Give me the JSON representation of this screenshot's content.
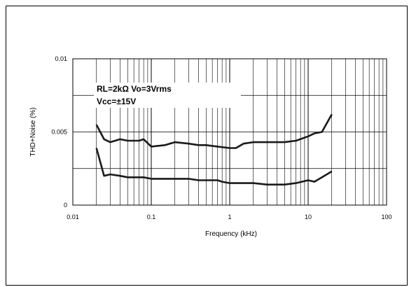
{
  "chart_data": {
    "type": "line",
    "xlabel": "Frequency (kHz)",
    "ylabel": "THD+Noise (%)",
    "xscale": "log",
    "xlim": [
      0.01,
      100
    ],
    "ylim": [
      0,
      0.01
    ],
    "x_tick_labels": [
      "0.01",
      "0.1",
      "1",
      "10",
      "100"
    ],
    "y_tick_labels": [
      "0",
      "0.005",
      "0.01"
    ],
    "grid": true,
    "annotations": [
      "RL=2kΩ  Vo=3Vrms",
      "Vcc=±15V"
    ],
    "series": [
      {
        "x": [
          0.02,
          0.025,
          0.03,
          0.04,
          0.05,
          0.07,
          0.08,
          0.1,
          0.15,
          0.2,
          0.3,
          0.4,
          0.5,
          0.7,
          1,
          1.2,
          1.5,
          2,
          3,
          5,
          7,
          10,
          12,
          15,
          20
        ],
        "values": [
          0.0055,
          0.0045,
          0.0043,
          0.0045,
          0.0044,
          0.0044,
          0.0045,
          0.004,
          0.0041,
          0.0043,
          0.0042,
          0.0041,
          0.0041,
          0.004,
          0.0039,
          0.0039,
          0.0042,
          0.0043,
          0.0043,
          0.0043,
          0.0044,
          0.0047,
          0.0049,
          0.005,
          0.0062
        ]
      },
      {
        "x": [
          0.02,
          0.025,
          0.03,
          0.04,
          0.05,
          0.07,
          0.08,
          0.1,
          0.15,
          0.2,
          0.3,
          0.4,
          0.5,
          0.7,
          0.8,
          1,
          1.2,
          1.5,
          2,
          3,
          5,
          7,
          10,
          12,
          15,
          20
        ],
        "values": [
          0.0039,
          0.002,
          0.0021,
          0.002,
          0.0019,
          0.0019,
          0.0019,
          0.0018,
          0.0018,
          0.0018,
          0.0018,
          0.0017,
          0.0017,
          0.0017,
          0.0016,
          0.0015,
          0.0015,
          0.0015,
          0.0015,
          0.0014,
          0.0014,
          0.0015,
          0.0017,
          0.0016,
          0.0019,
          0.0023
        ]
      }
    ]
  }
}
